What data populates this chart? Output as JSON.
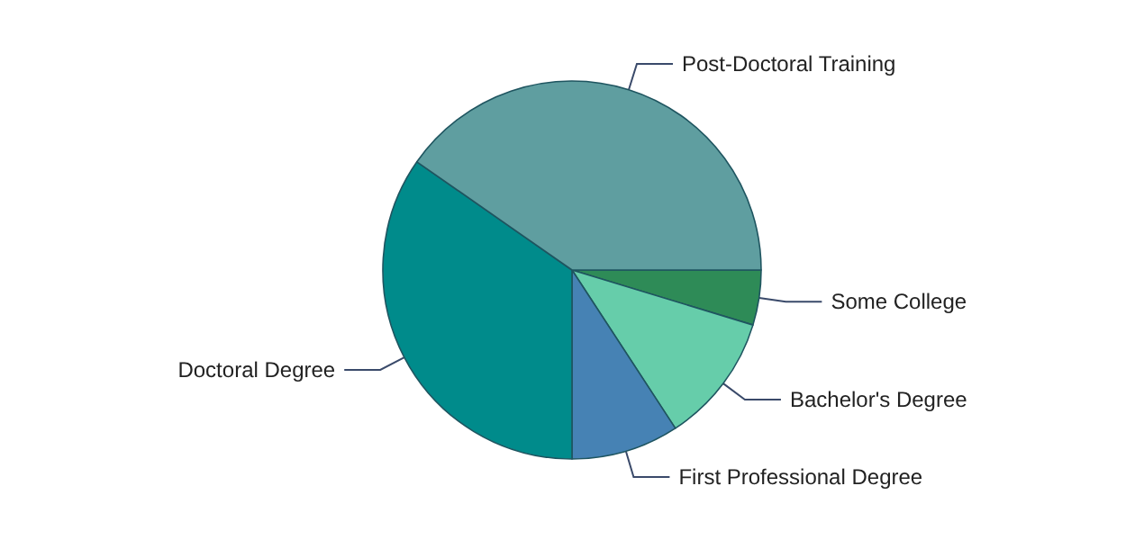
{
  "chart_data": {
    "type": "pie",
    "categories": [
      "Some College",
      "Bachelor's Degree",
      "First Professional Degree",
      "Doctoral Degree",
      "Post-Doctoral Training"
    ],
    "values": [
      4.7,
      11.1,
      9.2,
      34.7,
      40.3
    ],
    "colors": [
      "#2e8b57",
      "#66cdaa",
      "#4682b4",
      "#008b8b",
      "#5f9ea0"
    ]
  }
}
